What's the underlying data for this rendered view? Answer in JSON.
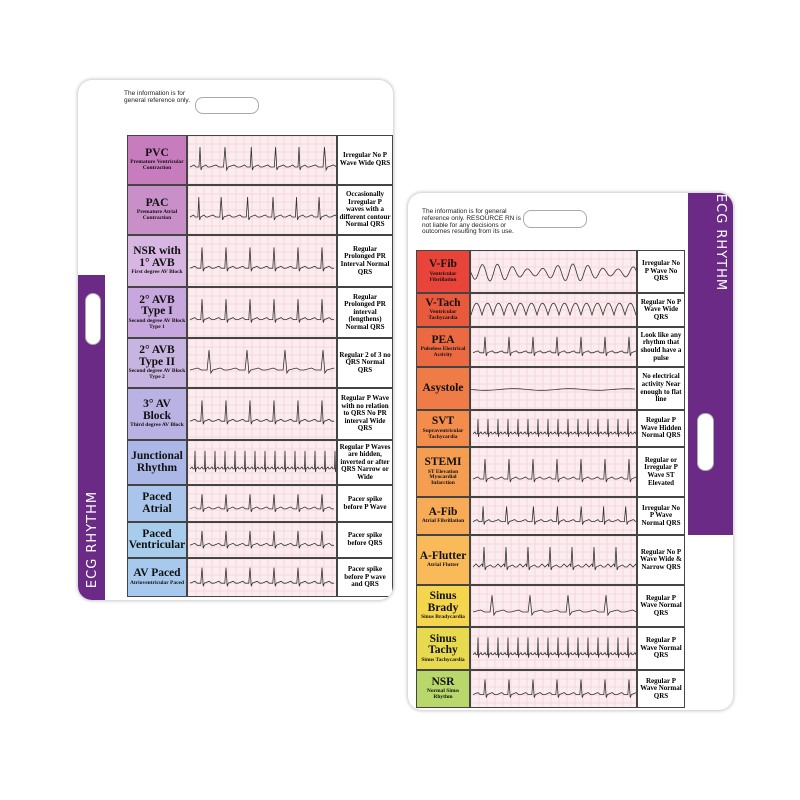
{
  "left_card": {
    "note": "The information is for general reference only.",
    "side_label": "ECG RHYTHM",
    "rows": [
      {
        "name": "PVC",
        "subtitle": "Premature Ventricular Contraction",
        "description": "Irregular No P Wave Wide QRS"
      },
      {
        "name": "PAC",
        "subtitle": "Premature Atrial Contraction",
        "description": "Occasionally Irregular P waves with a different contour Normal QRS"
      },
      {
        "name": "NSR with 1° AVB",
        "subtitle": "First degree AV Block",
        "description": "Regular Prolonged PR Interval Normal QRS"
      },
      {
        "name": "2° AVB Type I",
        "subtitle": "Second degree AV Block Type 1",
        "description": "Regular Prolonged PR interval (lengthens) Normal QRS"
      },
      {
        "name": "2° AVB Type II",
        "subtitle": "Second degree AV Block Type 2",
        "description": "Regular 2 of 3 no QRS Normal QRS"
      },
      {
        "name": "3° AV Block",
        "subtitle": "Third degree AV Block",
        "description": "Regular P Wave with no relation to QRS No PR interval Wide QRS"
      },
      {
        "name": "Junctional Rhythm",
        "description": "Regular P Waves are hidden, inverted or after QRS Narrow or Wide"
      },
      {
        "name": "Paced Atrial",
        "description": "Pacer spike before P Wave"
      },
      {
        "name": "Paced Ventricular",
        "description": "Pacer spike before QRS"
      },
      {
        "name": "AV Paced",
        "subtitle": "Atrioventricular Paced",
        "description": "Pacer spike before P wave and QRS"
      }
    ]
  },
  "right_card": {
    "note": "The information is for general reference only. RESOURCE RN is not liable for any decisions or outcomes resulting from its use.",
    "side_label": "ECG RHYTHM",
    "rows": [
      {
        "name": "V-Fib",
        "subtitle": "Ventricular Fibrillation",
        "description": "Irregular No P Wave No QRS"
      },
      {
        "name": "V-Tach",
        "subtitle": "Ventricular Tachycardia",
        "description": "Regular No P Wave Wide QRS"
      },
      {
        "name": "PEA",
        "subtitle": "Pulseless Electrical Activity",
        "description": "Look like any rhythm that should have a pulse"
      },
      {
        "name": "Asystole",
        "description": "No electrical activity Near enough to flat line"
      },
      {
        "name": "SVT",
        "subtitle": "Supraventricular Tachycardia",
        "description": "Regular P Wave Hidden Normal QRS"
      },
      {
        "name": "STEMI",
        "subtitle": "ST Elevation Myocardial Infarction",
        "description": "Regular or Irregular P Wave ST Elevated"
      },
      {
        "name": "A-Fib",
        "subtitle": "Atrial Fibrillation",
        "description": "Irregular No P Wave Normal QRS"
      },
      {
        "name": "A-Flutter",
        "subtitle": "Atrial Flutter",
        "description": "Regular No P Wave Wide & Narrow QRS"
      },
      {
        "name": "Sinus Brady",
        "subtitle": "Sinus Bradycardia",
        "description": "Regular P Wave Normal QRS"
      },
      {
        "name": "Sinus Tachy",
        "subtitle": "Sinus Tachycardia",
        "description": "Regular P Wave Normal QRS"
      },
      {
        "name": "NSR",
        "subtitle": "Normal Sinus Rhythm",
        "description": "Regular P Wave Normal QRS"
      }
    ]
  }
}
